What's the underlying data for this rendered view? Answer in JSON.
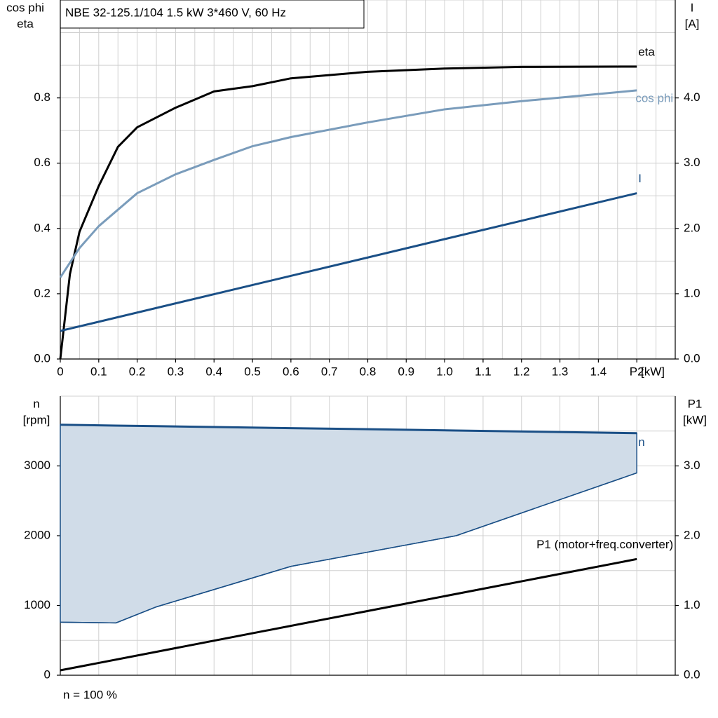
{
  "chart_data": [
    {
      "type": "line",
      "title": "NBE 32-125.1/104   1.5 kW   3*460 V, 60 Hz",
      "ylabel": [
        "cos phi",
        "eta"
      ],
      "y2label": [
        "I",
        "[A]"
      ],
      "xlabel": "[kW]",
      "xlim": [
        0,
        1.6
      ],
      "xticks": [
        0,
        0.1,
        0.2,
        0.3,
        0.4,
        0.5,
        0.6,
        0.7,
        0.8,
        0.9,
        {
          "value": 1,
          "label": "1.0"
        },
        1.1,
        1.2,
        1.3,
        1.4,
        {
          "value": 1.5,
          "label": "P2"
        }
      ],
      "ylim": [
        0,
        1.1
      ],
      "yticks": [
        {
          "value": 0,
          "label": "0.0"
        },
        0.2,
        0.4,
        0.6,
        0.8
      ],
      "y2lim": [
        0,
        5.5
      ],
      "y2ticks": [
        {
          "value": 0,
          "label": "0.0"
        },
        {
          "value": 1,
          "label": "1.0"
        },
        {
          "value": 2,
          "label": "2.0"
        },
        {
          "value": 3,
          "label": "3.0"
        },
        {
          "value": 4,
          "label": "4.0"
        }
      ],
      "grid": true,
      "series": [
        {
          "name": "eta",
          "color": "#000000",
          "x": [
            0,
            0.025,
            0.05,
            0.1,
            0.15,
            0.2,
            0.3,
            0.4,
            0.5,
            0.6,
            0.8,
            1.0,
            1.2,
            1.5
          ],
          "values": [
            0,
            0.26,
            0.39,
            0.53,
            0.65,
            0.71,
            0.77,
            0.82,
            0.836,
            0.86,
            0.88,
            0.89,
            0.895,
            0.896
          ]
        },
        {
          "name": "cos phi",
          "color": "#7a9cbb",
          "x": [
            0,
            0.05,
            0.1,
            0.2,
            0.3,
            0.4,
            0.5,
            0.6,
            0.8,
            1.0,
            1.2,
            1.5
          ],
          "values": [
            0.25,
            0.34,
            0.407,
            0.508,
            0.566,
            0.61,
            0.652,
            0.68,
            0.725,
            0.765,
            0.79,
            0.823
          ]
        },
        {
          "name": "I",
          "color": "#1a4f86",
          "axis": "y2",
          "x": [
            0,
            1.5
          ],
          "values": [
            0.43,
            2.54
          ]
        }
      ]
    },
    {
      "type": "line",
      "ylabel": [
        "n",
        "[rpm]"
      ],
      "y2label": [
        "P1",
        "[kW]"
      ],
      "note": "n = 100 %",
      "xlim": [
        0,
        1.6
      ],
      "ylim": [
        0,
        4000
      ],
      "yticks": [
        0,
        1000,
        2000,
        3000
      ],
      "y2lim": [
        0,
        4
      ],
      "y2ticks": [
        {
          "value": 0,
          "label": "0.0"
        },
        {
          "value": 1,
          "label": "1.0"
        },
        {
          "value": 2,
          "label": "2.0"
        },
        {
          "value": 3,
          "label": "3.0"
        }
      ],
      "grid": true,
      "series": [
        {
          "name": "n",
          "color": "#1a4f86",
          "fill": "#d0dce8",
          "x": [
            0,
            0.145,
            0.25,
            0.6,
            1.03,
            1.5
          ],
          "values": [
            3590,
            3578,
            3570,
            3542,
            3508,
            3470
          ],
          "low_values": [
            760,
            750,
            980,
            1560,
            2000,
            2900
          ]
        },
        {
          "name": "P1 (motor+freq.converter)",
          "color": "#000000",
          "axis": "y2",
          "x": [
            0,
            1.5
          ],
          "values": [
            0.07,
            1.665
          ]
        }
      ]
    }
  ]
}
